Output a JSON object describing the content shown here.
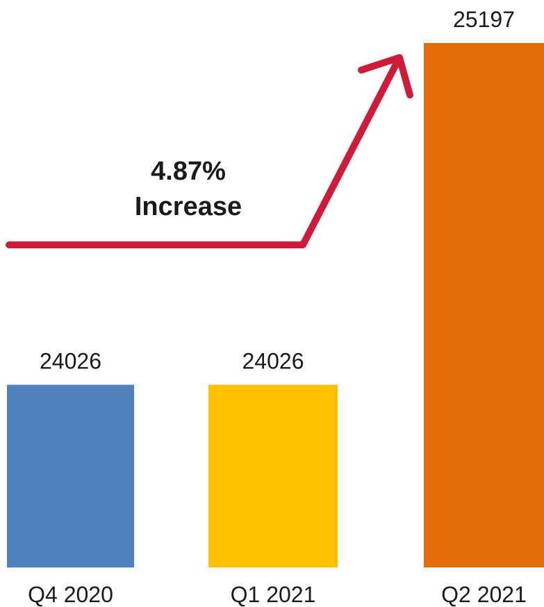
{
  "chart_data": {
    "type": "bar",
    "categories": [
      "Q4 2020",
      "Q1 2021",
      "Q2 2021"
    ],
    "values": [
      24026,
      24026,
      25197
    ],
    "data_labels": [
      "24026",
      "24026",
      "25197"
    ],
    "bar_colors": [
      "#4f81bd",
      "#ffc000",
      "#e36c09"
    ],
    "annotation": {
      "line1": "4.87%",
      "line2": "Increase",
      "arrow_color": "#cf1b38"
    },
    "title": "",
    "xlabel": "",
    "ylabel": "",
    "grid": false
  }
}
